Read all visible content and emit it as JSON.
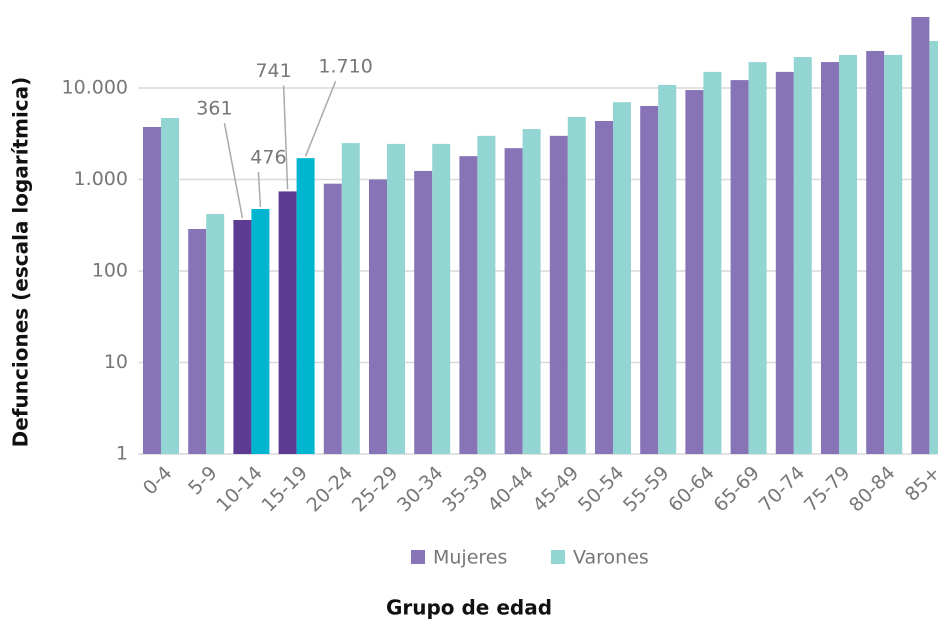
{
  "chart_data": {
    "type": "bar",
    "x_label": "Grupo de edad",
    "y_label": "Defunciones (escala logarítmica)",
    "categories": [
      "0-4",
      "5-9",
      "10-14",
      "15-19",
      "20-24",
      "25-29",
      "30-34",
      "35-39",
      "40-44",
      "45-49",
      "50-54",
      "55-59",
      "60-64",
      "65-69",
      "70-74",
      "75-79",
      "80-84",
      "85+"
    ],
    "series": [
      {
        "name": "Mujeres",
        "color": "#8774b6",
        "colors": [
          "#8774b6",
          "#8774b6",
          "#5e3b93",
          "#5e3b93",
          "#8774b6",
          "#8774b6",
          "#8774b6",
          "#8774b6",
          "#8774b6",
          "#8774b6",
          "#8774b6",
          "#8774b6",
          "#8774b6",
          "#8774b6",
          "#8774b6",
          "#8774b6",
          "#8774b6",
          "#8774b6"
        ],
        "values": [
          3750,
          288,
          361,
          741,
          900,
          1000,
          1240,
          1800,
          2200,
          3000,
          4360,
          6360,
          9500,
          12200,
          15000,
          19200,
          25400,
          59700
        ],
        "value_labels": [
          null,
          null,
          "361",
          "741",
          null,
          null,
          null,
          null,
          null,
          null,
          null,
          null,
          null,
          null,
          null,
          null,
          null,
          null
        ]
      },
      {
        "name": "Varones",
        "color": "#93d5d2",
        "colors": [
          "#93d5d2",
          "#93d5d2",
          "#00b5cf",
          "#00b5cf",
          "#93d5d2",
          "#93d5d2",
          "#93d5d2",
          "#93d5d2",
          "#93d5d2",
          "#93d5d2",
          "#93d5d2",
          "#93d5d2",
          "#93d5d2",
          "#93d5d2",
          "#93d5d2",
          "#93d5d2",
          "#93d5d2",
          "#93d5d2"
        ],
        "values": [
          4700,
          420,
          476,
          1710,
          2500,
          2450,
          2450,
          3000,
          3560,
          4820,
          7000,
          10800,
          15000,
          19200,
          21800,
          23000,
          23000,
          32600
        ],
        "value_labels": [
          null,
          null,
          "476",
          "1.710",
          null,
          null,
          null,
          null,
          null,
          null,
          null,
          null,
          null,
          null,
          null,
          null,
          null,
          null
        ]
      }
    ],
    "log_scale": true,
    "ylim": [
      1,
      70000
    ],
    "yticks": [
      1,
      10,
      100,
      {
        "value": 1000,
        "label": "1.000"
      },
      {
        "value": 10000,
        "label": "10.000"
      }
    ],
    "grid": true,
    "legend": "bottom"
  }
}
